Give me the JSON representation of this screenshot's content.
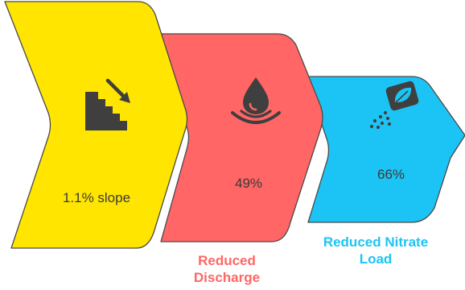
{
  "steps": [
    {
      "id": "slope",
      "icon": "stairs-down-arrow-icon",
      "value_text": "1.1% slope",
      "color": "#FFE500"
    },
    {
      "id": "discharge",
      "icon": "water-drop-ripple-icon",
      "value_text": "49%",
      "caption": "Reduced Discharge",
      "color": "#FF6665",
      "caption_color": "#FF6665"
    },
    {
      "id": "nitrate",
      "icon": "fertilizer-bag-leaf-icon",
      "value_text": "66%",
      "caption": "Reduced Nitrate Load",
      "color": "#1CC4F5",
      "caption_color": "#1CC4F5"
    }
  ],
  "colors": {
    "outline": "#4a4a4a",
    "icon": "#3f3f3f"
  }
}
